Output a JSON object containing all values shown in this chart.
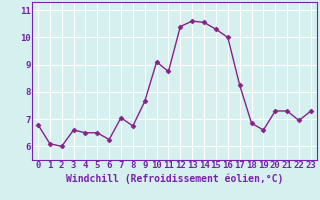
{
  "x": [
    0,
    1,
    2,
    3,
    4,
    5,
    6,
    7,
    8,
    9,
    10,
    11,
    12,
    13,
    14,
    15,
    16,
    17,
    18,
    19,
    20,
    21,
    22,
    23
  ],
  "y": [
    6.8,
    6.1,
    6.0,
    6.6,
    6.5,
    6.5,
    6.25,
    7.05,
    6.75,
    7.65,
    9.1,
    8.75,
    10.4,
    10.6,
    10.55,
    10.3,
    10.0,
    8.25,
    6.85,
    6.6,
    7.3,
    7.3,
    6.95,
    7.3
  ],
  "line_color": "#882288",
  "marker": "D",
  "markersize": 2.5,
  "linewidth": 1.0,
  "bg_color": "#d6f0f0",
  "grid_color": "#ffffff",
  "axes_color": "#7722aa",
  "spine_color": "#7722aa",
  "xlabel": "Windchill (Refroidissement éolien,°C)",
  "xlabel_fontsize": 7,
  "tick_fontsize": 6.5,
  "xlim": [
    -0.5,
    23.5
  ],
  "ylim": [
    5.5,
    11.3
  ],
  "yticks": [
    6,
    7,
    8,
    9,
    10,
    11
  ],
  "xticks": [
    0,
    1,
    2,
    3,
    4,
    5,
    6,
    7,
    8,
    9,
    10,
    11,
    12,
    13,
    14,
    15,
    16,
    17,
    18,
    19,
    20,
    21,
    22,
    23
  ]
}
